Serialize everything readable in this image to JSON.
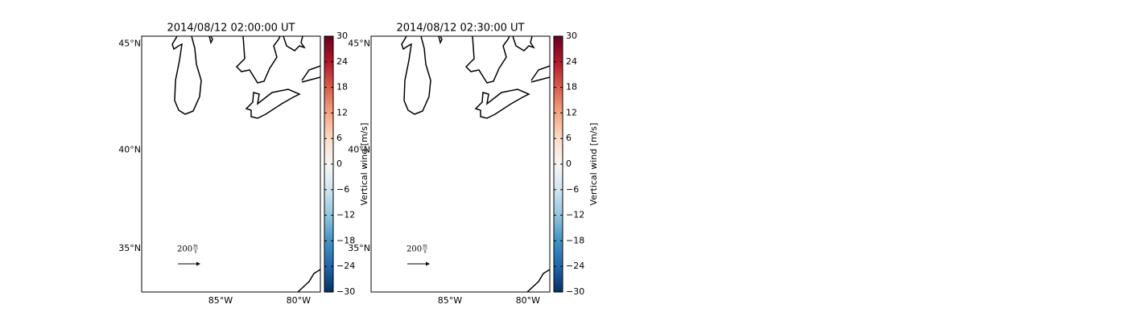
{
  "panels": [
    {
      "title": "2014/08/12 02:00:00 UT"
    },
    {
      "title": "2014/08/12 02:30:00 UT"
    }
  ],
  "map": {
    "projection": "mercator",
    "lonlim": [
      -90.05,
      -78.6
    ],
    "latlim": [
      32.7,
      45.35
    ],
    "lat_ticks": [
      {
        "value": 45,
        "label": "45°N"
      },
      {
        "value": 40,
        "label": "40°N"
      },
      {
        "value": 35,
        "label": "35°N"
      }
    ],
    "lon_ticks": [
      {
        "value": -85,
        "label": "85°W"
      },
      {
        "value": -80,
        "label": "80°W"
      }
    ]
  },
  "colorbar": {
    "label": "Vertical wind [m/s]",
    "lim": [
      -30,
      30
    ],
    "ticks": [
      30,
      24,
      18,
      12,
      6,
      0,
      {
        "value": -6,
        "label": "−6"
      },
      {
        "value": -12,
        "label": "−12"
      },
      {
        "value": -18,
        "label": "−18"
      },
      {
        "value": -24,
        "label": "−24"
      },
      {
        "value": -30,
        "label": "−30"
      }
    ],
    "cmap": [
      "#053061",
      "#2166ac",
      "#4393c3",
      "#92c5de",
      "#d1e5f0",
      "#f7f7f7",
      "#fddbc7",
      "#f4a582",
      "#d6604d",
      "#b2182b",
      "#67001f"
    ]
  },
  "quiver_key": {
    "number": "200",
    "unit_top": "m",
    "unit_bottom": "s"
  }
}
